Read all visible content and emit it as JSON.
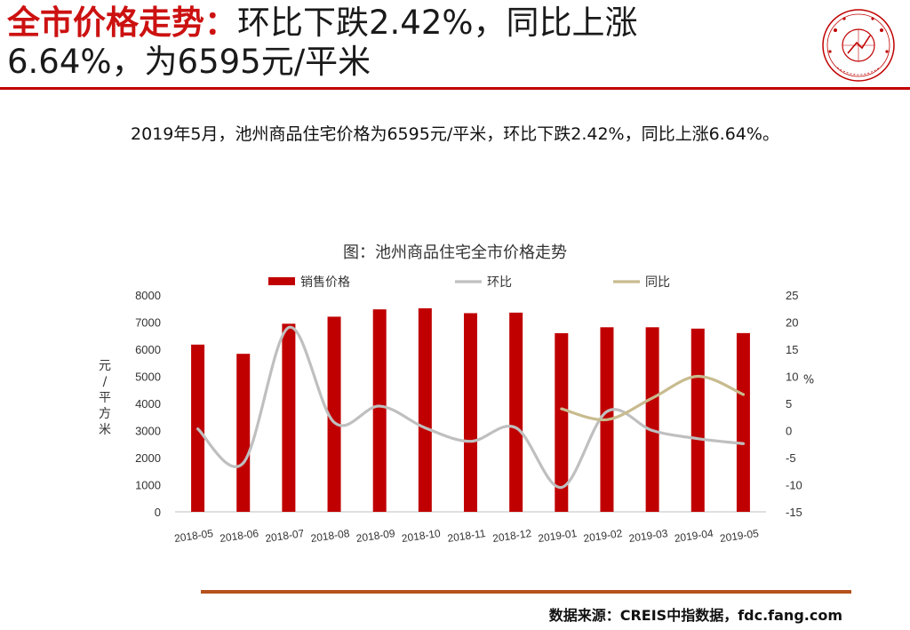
{
  "header": {
    "title_lead": "全市价格走势：",
    "title_line1_rest": "环比下跌2.42%，同比上涨",
    "title_line2": "6.64%，为6595元/平米",
    "logo_icon": "china-index-academy-seal-icon",
    "logo_color": "#c00000"
  },
  "summary": "2019年5月，池州商品住宅价格为6595元/平米，环比下跌2.42%，同比上涨6.64%。",
  "chart_data": {
    "type": "bar",
    "title": "图：池州商品住宅全市价格走势",
    "categories": [
      "2018-05",
      "2018-06",
      "2018-07",
      "2018-08",
      "2018-09",
      "2018-10",
      "2018-11",
      "2018-12",
      "2019-01",
      "2019-02",
      "2019-03",
      "2019-04",
      "2019-05"
    ],
    "ylabel_left": "元/平方米",
    "ylabel_right": "%",
    "y_left_ticks": [
      "0",
      "1000",
      "2000",
      "3000",
      "4000",
      "5000",
      "6000",
      "7000",
      "8000"
    ],
    "y_right_ticks": [
      "-15",
      "-10",
      "-5",
      "0",
      "5",
      "10",
      "15",
      "20",
      "25"
    ],
    "ylim_left": [
      0,
      8000
    ],
    "ylim_right": [
      -15,
      25
    ],
    "legend_position": "top",
    "grid": false,
    "series": [
      {
        "name": "销售价格",
        "kind": "bar",
        "axis": "left",
        "color": "#c00000",
        "values": [
          6170,
          5830,
          6940,
          7200,
          7470,
          7510,
          7330,
          7350,
          6590,
          6810,
          6810,
          6760,
          6595
        ]
      },
      {
        "name": "环比",
        "kind": "line",
        "axis": "right",
        "color": "#bfbfbf",
        "values": [
          0.3,
          -6.0,
          19.0,
          1.5,
          4.5,
          0.5,
          -2.0,
          0.5,
          -10.5,
          3.5,
          0.0,
          -1.5,
          -2.42
        ]
      },
      {
        "name": "同比",
        "kind": "line",
        "axis": "right",
        "color": "#c8bb8e",
        "values": [
          null,
          null,
          null,
          null,
          null,
          null,
          null,
          null,
          4.0,
          2.0,
          6.0,
          10.0,
          6.64
        ]
      }
    ]
  },
  "footer": {
    "source": "数据来源：CREIS中指数据，fdc.fang.com"
  }
}
